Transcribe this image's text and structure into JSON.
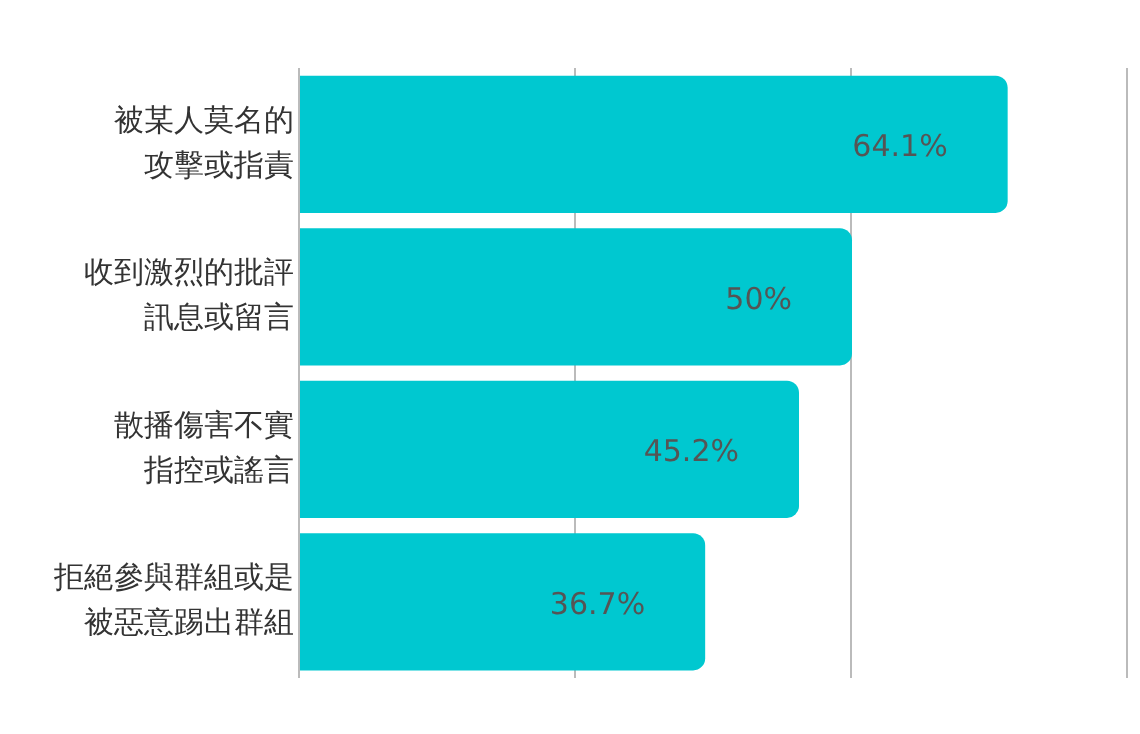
{
  "chart_data": {
    "type": "bar",
    "orientation": "horizontal",
    "categories": [
      "被某人莫名的攻擊或指責",
      "收到激烈的批評訊息或留言",
      "散播傷害不實指控或謠言",
      "拒絕參與群組或是被惡意踢出群組"
    ],
    "values": [
      64.1,
      50,
      45.2,
      36.7
    ],
    "value_labels": [
      "64.1%",
      "50%",
      "45.2%",
      "36.7%"
    ],
    "color": "#00c8d0",
    "xlim": [
      0,
      75
    ],
    "xticks": [
      {
        "value": 0,
        "label": null
      },
      {
        "value": 25,
        "label": null
      },
      {
        "value": 50,
        "label": null
      },
      {
        "value": 75,
        "label": null
      }
    ],
    "grid": "x",
    "legend": false,
    "tick_labels": "y"
  }
}
